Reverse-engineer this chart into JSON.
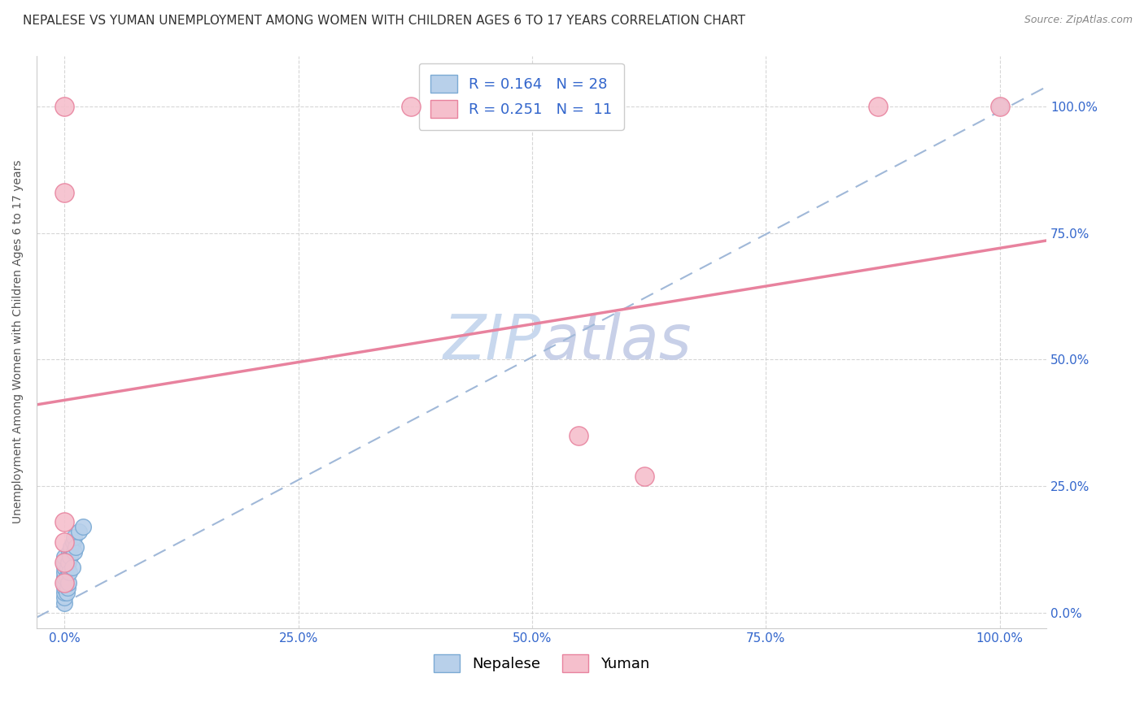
{
  "title": "NEPALESE VS YUMAN UNEMPLOYMENT AMONG WOMEN WITH CHILDREN AGES 6 TO 17 YEARS CORRELATION CHART",
  "source": "Source: ZipAtlas.com",
  "ylabel": "Unemployment Among Women with Children Ages 6 to 17 years",
  "nepalese_R": 0.164,
  "nepalese_N": 28,
  "yuman_R": 0.251,
  "yuman_N": 11,
  "nepalese_x": [
    0.0,
    0.0,
    0.0,
    0.0,
    0.0,
    0.0,
    0.0,
    0.0,
    0.0,
    0.0,
    0.002,
    0.002,
    0.003,
    0.003,
    0.004,
    0.004,
    0.005,
    0.005,
    0.006,
    0.007,
    0.008,
    0.009,
    0.01,
    0.01,
    0.012,
    0.015,
    0.02,
    1.0
  ],
  "nepalese_y": [
    0.02,
    0.03,
    0.04,
    0.05,
    0.06,
    0.07,
    0.08,
    0.09,
    0.1,
    0.11,
    0.04,
    0.07,
    0.05,
    0.09,
    0.06,
    0.1,
    0.08,
    0.12,
    0.11,
    0.13,
    0.09,
    0.14,
    0.12,
    0.15,
    0.13,
    0.16,
    0.17,
    1.0
  ],
  "yuman_x": [
    0.0,
    0.0,
    0.0,
    0.0,
    0.0,
    0.37,
    0.87,
    1.0,
    0.55,
    0.62,
    0.0
  ],
  "yuman_y": [
    1.0,
    0.83,
    0.18,
    0.14,
    0.1,
    1.0,
    1.0,
    1.0,
    0.35,
    0.27,
    0.06
  ],
  "nepalese_color": "#b8d0ea",
  "nepalese_edge_color": "#7baad4",
  "yuman_color": "#f5bfcc",
  "yuman_edge_color": "#e8829e",
  "trend_nepalese_color": "#a0b8d8",
  "trend_yuman_color": "#e8829e",
  "watermark_zip_color": "#c8d8ee",
  "watermark_atlas_color": "#c8d0e8",
  "background_color": "#ffffff",
  "grid_color": "#cccccc",
  "tick_label_color": "#3366cc",
  "title_color": "#333333",
  "legend_text_color": "#3366cc",
  "right_ytick_color": "#3366cc",
  "xlim": [
    -0.03,
    1.05
  ],
  "ylim": [
    -0.03,
    1.1
  ],
  "xticks": [
    0.0,
    0.25,
    0.5,
    0.75,
    1.0
  ],
  "yticks": [
    0.0,
    0.25,
    0.5,
    0.75,
    1.0
  ],
  "xticklabels": [
    "0.0%",
    "25.0%",
    "50.0%",
    "75.0%",
    "100.0%"
  ],
  "yticklabels_right": [
    "0.0%",
    "25.0%",
    "50.0%",
    "75.0%",
    "100.0%"
  ],
  "marker_size_neo": 200,
  "marker_size_yum": 280,
  "title_fontsize": 11,
  "source_fontsize": 9,
  "axis_label_fontsize": 10,
  "tick_fontsize": 11,
  "legend_fontsize": 13,
  "watermark_fontsize": 55,
  "yuman_trend_intercept": 0.42,
  "yuman_trend_slope": 0.3,
  "nepalese_trend_intercept": 0.02,
  "nepalese_trend_slope": 0.97
}
